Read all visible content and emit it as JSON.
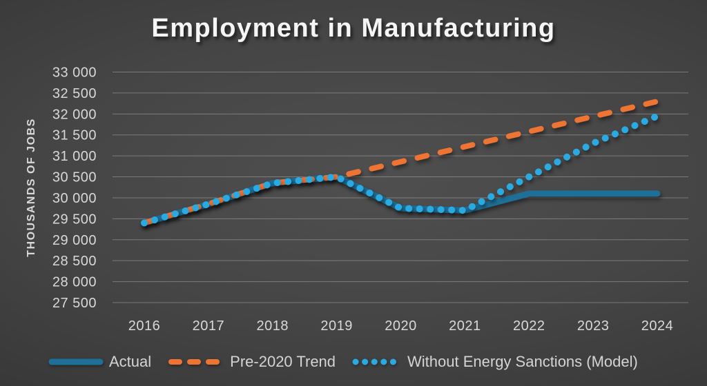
{
  "title": "Employment in Manufacturing",
  "chart_data": {
    "type": "line",
    "title": "Employment in Manufacturing",
    "ylabel": "THOUSANDS OF JOBS",
    "xlabel": "",
    "x": [
      2016,
      2017,
      2018,
      2019,
      2020,
      2021,
      2022,
      2023,
      2024
    ],
    "series": [
      {
        "name": "Actual",
        "style": "solid",
        "color": "#1E7099",
        "values": [
          29400,
          29850,
          30350,
          30500,
          29750,
          29700,
          30100,
          30100,
          30100
        ]
      },
      {
        "name": "Pre-2020 Trend",
        "style": "dashed",
        "color": "#ED7433",
        "values": [
          29400,
          29850,
          30350,
          30500,
          30860,
          31220,
          31580,
          31940,
          32300
        ]
      },
      {
        "name": "Without Energy Sanctions (Model)",
        "style": "dotted",
        "color": "#2BA9E1",
        "values": [
          29400,
          29850,
          30350,
          30500,
          29750,
          29700,
          30500,
          31300,
          31950
        ]
      }
    ],
    "ylim": [
      27500,
      33000
    ],
    "ytick_step": 500,
    "y_tick_labels": [
      "33 000",
      "32 500",
      "32 000",
      "31 500",
      "31 000",
      "30 500",
      "30 000",
      "29 500",
      "29 000",
      "28 500",
      "28 000",
      "27 500"
    ],
    "grid": true,
    "legend_position": "bottom"
  },
  "colors": {
    "title_text": "#f5f5f5",
    "axis_text": "#d9d9d9",
    "legend_text": "#d4d4d4",
    "grid": "#ebebeb"
  }
}
